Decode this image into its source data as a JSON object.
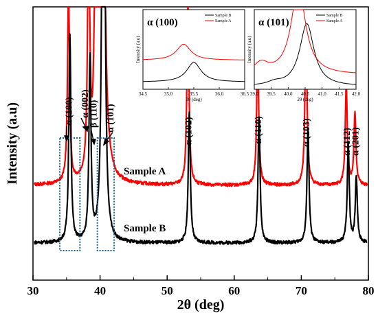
{
  "chart_data": [
    {
      "type": "line",
      "xlabel": "2θ (deg)",
      "ylabel": "Intensity (a.u)",
      "xlim": [
        30,
        80
      ],
      "xticks": [
        30,
        40,
        50,
        60,
        70,
        80
      ],
      "y_ticks_shown": false,
      "grid": false,
      "series": [
        {
          "name": "Sample A",
          "color": "#ff0000",
          "baseline": 10.5,
          "peaks": [
            {
              "x": 35.3,
              "y": 36
            },
            {
              "x": 38.3,
              "y": 48
            },
            {
              "x": 39.3,
              "y": 36
            },
            {
              "x": 40.2,
              "y": 400
            },
            {
              "x": 53.1,
              "y": 34
            },
            {
              "x": 63.5,
              "y": 25
            },
            {
              "x": 70.7,
              "y": 30
            },
            {
              "x": 76.7,
              "y": 18
            },
            {
              "x": 78.0,
              "y": 13
            }
          ]
        },
        {
          "name": "Sample B",
          "color": "#000000",
          "baseline": 0,
          "peaks": [
            {
              "x": 35.5,
              "y": 38
            },
            {
              "x": 38.5,
              "y": 33
            },
            {
              "x": 40.5,
              "y": 160
            },
            {
              "x": 53.3,
              "y": 24
            },
            {
              "x": 63.7,
              "y": 23
            },
            {
              "x": 71.0,
              "y": 21
            },
            {
              "x": 77.0,
              "y": 18
            },
            {
              "x": 78.2,
              "y": 12
            }
          ]
        }
      ],
      "peak_labels": [
        {
          "text": "α (100)",
          "x": 35.3
        },
        {
          "text": "α (002)",
          "x": 38.4
        },
        {
          "text": "β (110)",
          "x": 39.4
        },
        {
          "text": "α (101)",
          "x": 41.5
        },
        {
          "text": "α (102)",
          "x": 53.1
        },
        {
          "text": "α (110)",
          "x": 63.5
        },
        {
          "text": "α (103)",
          "x": 70.7
        },
        {
          "text": "α (112)",
          "x": 76.7
        },
        {
          "text": "α (201)",
          "x": 78.0
        }
      ],
      "sample_labels": [
        "Sample A",
        "Sample B"
      ],
      "highlight_boxes_x": [
        [
          34.0,
          37.0
        ],
        [
          39.6,
          42.1
        ]
      ]
    },
    {
      "type": "line",
      "title": "α (100)",
      "xlabel": "2θ (deg)",
      "ylabel": "Intensity (a.u)",
      "xlim": [
        34.5,
        36.5
      ],
      "xticks": [
        "34.5",
        "35.0",
        "35.5",
        "36.0",
        "36.5"
      ],
      "legend_position": "top-right",
      "legend": [
        "Sample B",
        "Sample A"
      ],
      "series": [
        {
          "name": "Sample B",
          "color": "#000000",
          "baseline": 0.08,
          "peaks": [
            {
              "x": 35.5,
              "y": 0.27
            }
          ]
        },
        {
          "name": "Sample A",
          "color": "#ff0000",
          "baseline": 0.38,
          "peaks": [
            {
              "x": 35.3,
              "y": 0.22
            }
          ]
        }
      ],
      "ylim": [
        0,
        1.0
      ]
    },
    {
      "type": "line",
      "title": "α (101)",
      "xlabel": "2θ (deg)",
      "ylabel": "Intensity (a.u)",
      "xlim": [
        39.0,
        42.0
      ],
      "xticks": [
        "39.0",
        "39.5",
        "40.0",
        "40.5",
        "41.0",
        "41.5",
        "42.0"
      ],
      "legend_position": "top-right",
      "legend": [
        "Sample B",
        "Sample A"
      ],
      "series": [
        {
          "name": "Sample B",
          "color": "#000000",
          "baseline": 0.02,
          "peaks": [
            {
              "x": 39.6,
              "y": 0.04
            },
            {
              "x": 40.55,
              "y": 0.86
            }
          ]
        },
        {
          "name": "Sample A",
          "color": "#ff0000",
          "baseline": 0.18,
          "peaks": [
            {
              "x": 39.2,
              "y": 0.14
            },
            {
              "x": 40.3,
              "y": 1.2
            }
          ]
        }
      ],
      "ylim": [
        0,
        1.0
      ]
    }
  ]
}
